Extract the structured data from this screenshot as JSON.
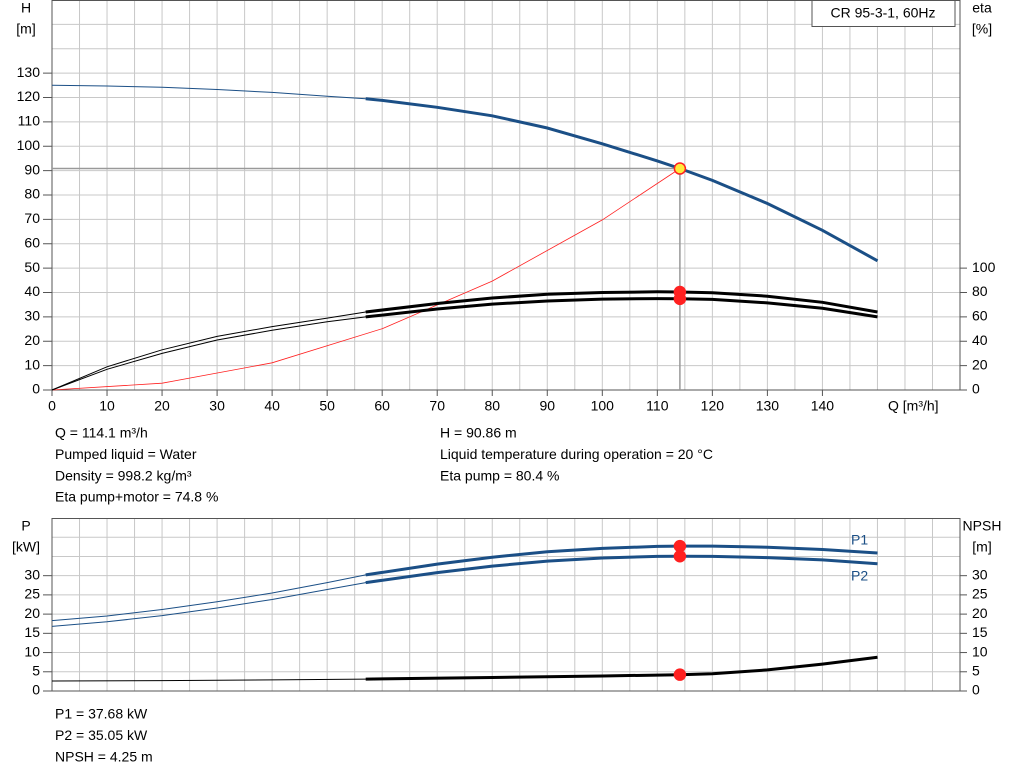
{
  "chart_data": [
    {
      "type": "line",
      "title": "CR 95-3-1, 60Hz",
      "ylabel": "H",
      "yunit": "[m]",
      "y2label": "eta",
      "y2unit": "[%]",
      "xlabel": "Q [m³/h]",
      "xlim": [
        0,
        165
      ],
      "xticks": [
        0,
        10,
        20,
        30,
        40,
        50,
        60,
        70,
        80,
        90,
        100,
        110,
        120,
        130,
        140
      ],
      "xgrid": [
        0,
        5,
        10,
        15,
        20,
        25,
        30,
        35,
        40,
        45,
        50,
        55,
        60,
        65,
        70,
        75,
        80,
        85,
        90,
        95,
        100,
        105,
        110,
        115,
        120,
        125,
        130,
        135,
        140,
        145,
        150,
        155,
        160
      ],
      "ylim": [
        0,
        160
      ],
      "yticks": [
        0,
        10,
        20,
        30,
        40,
        50,
        60,
        70,
        80,
        90,
        100,
        110,
        120,
        130
      ],
      "ygrid": [
        0,
        10,
        20,
        30,
        40,
        50,
        60,
        70,
        80,
        90,
        100,
        110,
        120,
        130,
        140,
        150
      ],
      "y2lim": [
        0,
        320
      ],
      "y2ticks": [
        0,
        20,
        40,
        60,
        80,
        100
      ],
      "operating_q": 114.1,
      "bold_from": 57,
      "series": [
        {
          "color": "#1b4f86",
          "marker_color": "#ffeb3b",
          "x": [
            0,
            10,
            20,
            30,
            40,
            50,
            57,
            60,
            70,
            80,
            90,
            100,
            110,
            114.1,
            120,
            130,
            140,
            150
          ],
          "values": [
            125,
            124.7,
            124.2,
            123.3,
            122.1,
            120.5,
            119.5,
            118.8,
            116,
            112.5,
            107.5,
            101,
            94,
            90.86,
            86,
            76.5,
            65.5,
            53
          ]
        },
        {
          "color": "#000000",
          "marker_color": "#ff2020",
          "axis": "y2",
          "x": [
            0,
            10,
            20,
            30,
            40,
            50,
            57,
            70,
            80,
            90,
            100,
            110,
            114.1,
            120,
            130,
            140,
            150
          ],
          "values": [
            0,
            19,
            33,
            44,
            52,
            59,
            64,
            71,
            75.5,
            78.5,
            80,
            80.6,
            80.4,
            79.8,
            77,
            72,
            64
          ]
        },
        {
          "color": "#000000",
          "marker_color": "#ff2020",
          "axis": "y2",
          "x": [
            0,
            10,
            20,
            30,
            40,
            50,
            57,
            70,
            80,
            90,
            100,
            110,
            114.1,
            120,
            130,
            140,
            150
          ],
          "values": [
            0,
            17,
            30,
            41,
            49,
            56,
            60,
            66.5,
            70.5,
            73,
            74.6,
            75,
            74.8,
            74.3,
            71.5,
            67,
            60
          ]
        }
      ],
      "system_curve": {
        "color": "#ff2020",
        "x": [
          0,
          20,
          40,
          60,
          80,
          100,
          114.1
        ],
        "values": [
          0,
          2.79,
          11.17,
          25.13,
          44.67,
          69.79,
          90.86
        ]
      },
      "info_left": [
        "Q = 114.1 m³/h",
        "Pumped liquid = Water",
        "Density = 998.2 kg/m³",
        "Eta pump+motor = 74.8 %"
      ],
      "info_right": [
        "H = 90.86 m",
        "Liquid temperature during operation = 20 °C",
        "Eta pump = 80.4 %"
      ]
    },
    {
      "type": "line",
      "ylabel": "P",
      "yunit": "[kW]",
      "y2label": "NPSH",
      "y2unit": "[m]",
      "xlim": [
        0,
        165
      ],
      "xgrid": [
        0,
        5,
        10,
        15,
        20,
        25,
        30,
        35,
        40,
        45,
        50,
        55,
        60,
        65,
        70,
        75,
        80,
        85,
        90,
        95,
        100,
        105,
        110,
        115,
        120,
        125,
        130,
        135,
        140,
        145,
        150,
        155,
        160
      ],
      "ylim": [
        0,
        45
      ],
      "yticks": [
        0,
        5,
        10,
        15,
        20,
        25,
        30
      ],
      "ygrid": [
        0,
        5,
        10,
        15,
        20,
        25,
        30,
        35,
        40
      ],
      "y2lim": [
        0,
        45
      ],
      "y2ticks": [
        0,
        5,
        10,
        15,
        20,
        25,
        30
      ],
      "operating_q": 114.1,
      "bold_from": 57,
      "series": [
        {
          "name": "P1",
          "color": "#1b4f86",
          "marker_color": "#ff2020",
          "x": [
            0,
            10,
            20,
            30,
            40,
            50,
            57,
            70,
            80,
            90,
            100,
            110,
            114.1,
            120,
            130,
            140,
            150
          ],
          "values": [
            18.3,
            19.5,
            21.2,
            23.2,
            25.5,
            28.2,
            30.2,
            33,
            34.8,
            36.2,
            37.1,
            37.6,
            37.68,
            37.7,
            37.4,
            36.8,
            35.9
          ]
        },
        {
          "name": "P2",
          "color": "#1b4f86",
          "marker_color": "#ff2020",
          "x": [
            0,
            10,
            20,
            30,
            40,
            50,
            57,
            70,
            80,
            90,
            100,
            110,
            114.1,
            120,
            130,
            140,
            150
          ],
          "values": [
            16.8,
            18,
            19.6,
            21.6,
            23.8,
            26.4,
            28.2,
            30.8,
            32.5,
            33.8,
            34.6,
            35,
            35.05,
            35,
            34.7,
            34.1,
            33.1
          ]
        },
        {
          "color": "#000000",
          "marker_color": "#ff2020",
          "axis": "y2",
          "x": [
            0,
            20,
            40,
            57,
            80,
            100,
            114.1,
            120,
            130,
            140,
            150
          ],
          "values": [
            2.6,
            2.7,
            2.9,
            3.1,
            3.5,
            3.9,
            4.25,
            4.5,
            5.5,
            7,
            8.8
          ]
        }
      ],
      "info": [
        "P1 = 37.68 kW",
        "P2 = 35.05 kW",
        "NPSH = 4.25 m"
      ]
    }
  ]
}
